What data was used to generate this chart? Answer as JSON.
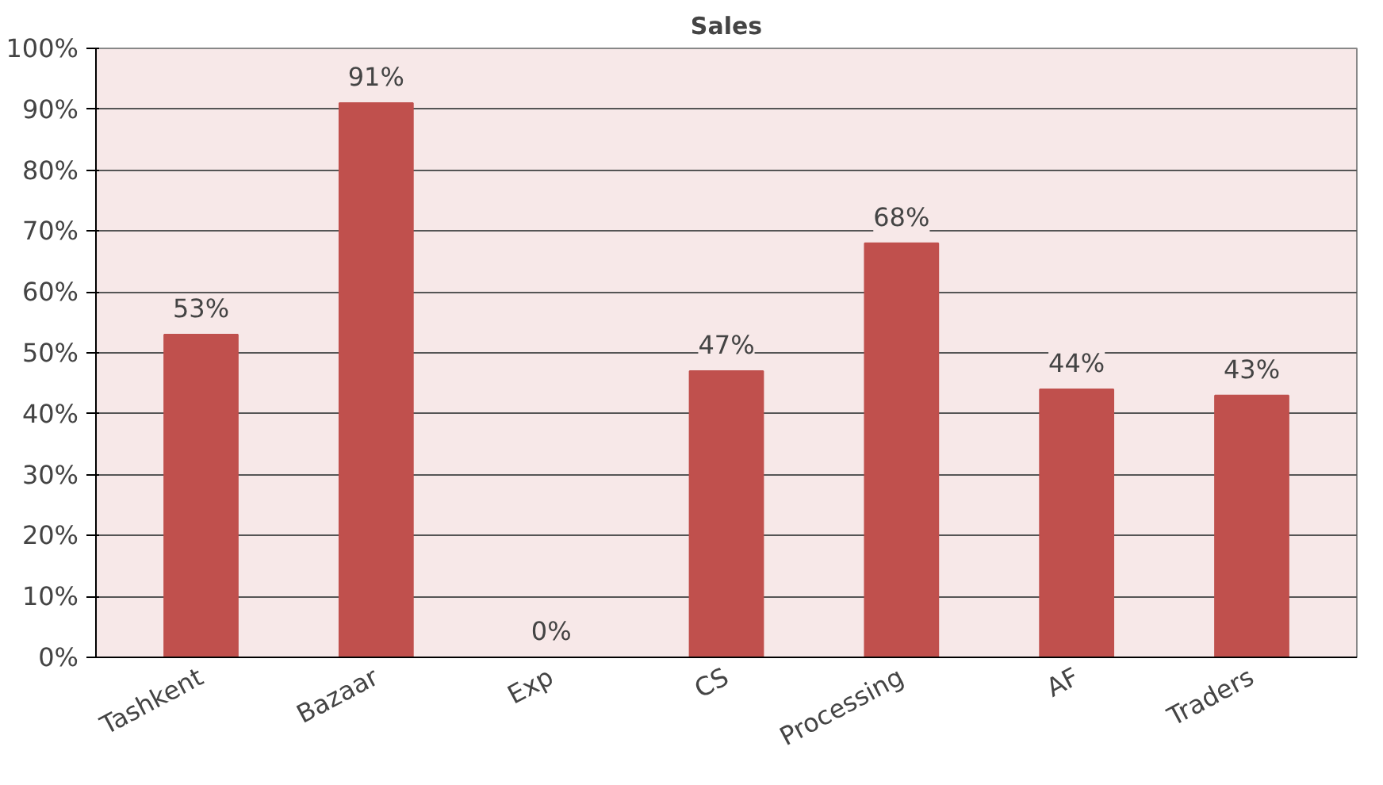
{
  "chart_data": {
    "type": "bar",
    "title": "Sales",
    "categories": [
      "Tashkent",
      "Bazaar",
      "Exp",
      "CS",
      "Processing",
      "AF",
      "Traders"
    ],
    "values": [
      53,
      91,
      0,
      47,
      68,
      44,
      43
    ],
    "value_labels": [
      "53%",
      "91%",
      "0%",
      "47%",
      "68%",
      "44%",
      "43%"
    ],
    "color": "#c0504d",
    "ylim": [
      0,
      100
    ],
    "yticks": [
      {
        "value": 0,
        "label": "0%"
      },
      {
        "value": 10,
        "label": "10%"
      },
      {
        "value": 20,
        "label": "20%"
      },
      {
        "value": 30,
        "label": "30%"
      },
      {
        "value": 40,
        "label": "40%"
      },
      {
        "value": 50,
        "label": "50%"
      },
      {
        "value": 60,
        "label": "60%"
      },
      {
        "value": 70,
        "label": "70%"
      },
      {
        "value": 80,
        "label": "80%"
      },
      {
        "value": 90,
        "label": "90%"
      },
      {
        "value": 100,
        "label": "100%"
      }
    ],
    "grid": "y"
  }
}
